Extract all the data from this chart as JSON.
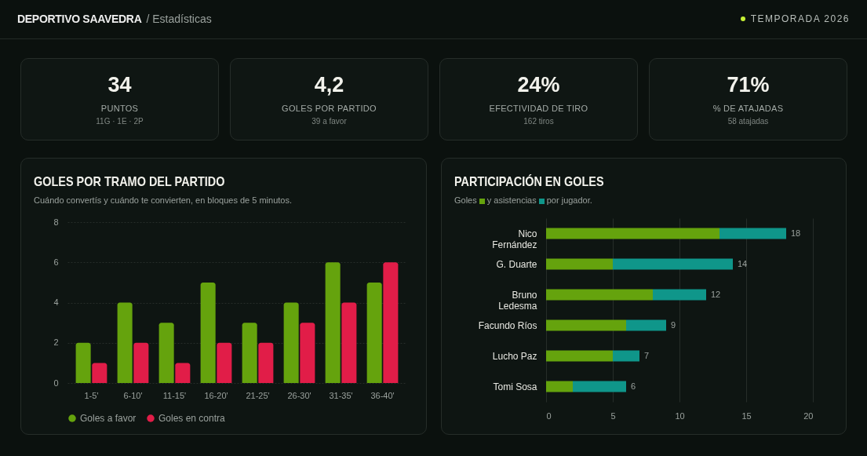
{
  "chart_data": [
    {
      "type": "other",
      "title": "DEPORTIVO SAAVEDRA",
      "subtitle": "/ Estadísticas",
      "annotations": [
        "TEMPORADA 2026",
        "34",
        "PUNTOS",
        "11G · 1E · 2P",
        "4,2",
        "GOLES POR PARTIDO",
        "39 a favor",
        "24%",
        "EFECTIVIDAD DE TIRO",
        "162 tiros",
        "71%",
        "% DE ATAJADAS",
        "58 atajadas"
      ]
    },
    {
      "type": "bar",
      "title": "GOLES POR TRAMO DEL PARTIDO",
      "subtitle": "Cuándo convertís y cuándo te convierten, en bloques de 5 minutos.",
      "categories": [
        "1-5'",
        "6-10'",
        "11-15'",
        "16-20'",
        "21-25'",
        "26-30'",
        "31-35'",
        "36-40'"
      ],
      "series": [
        {
          "name": "Goles a favor",
          "color": "#65a30d",
          "values": [
            2,
            4,
            3,
            5,
            3,
            4,
            6,
            5
          ]
        },
        {
          "name": "Goles en contra",
          "color": "#e11d48",
          "values": [
            1,
            2,
            1,
            2,
            2,
            3,
            4,
            6
          ]
        }
      ],
      "ylim": [
        0,
        8
      ],
      "yticks": [
        0,
        2,
        4,
        6,
        8
      ],
      "grid": "y",
      "legend": "bottom"
    },
    {
      "type": "bar",
      "orientation": "horizontal",
      "stacked": true,
      "title": "PARTICIPACIÓN EN GOLES",
      "subtitle": "por jugador.",
      "categories": [
        "Nico Fernández",
        "G. Duarte",
        "Bruno Ledesma",
        "Facundo Ríos",
        "Lucho Paz",
        "Tomi Sosa"
      ],
      "series": [
        {
          "name": "Goles",
          "color": "#65a30d",
          "values": [
            13,
            5,
            8,
            6,
            5,
            2
          ]
        },
        {
          "name": "y asistencias",
          "color": "#0f968a",
          "values": [
            5,
            9,
            4,
            3,
            2,
            4
          ]
        }
      ],
      "totals": [
        "18",
        "14",
        "12",
        "9",
        "7",
        "6"
      ],
      "xlim": [
        0,
        20
      ],
      "xticks": [
        0,
        5,
        10,
        15,
        20
      ],
      "grid": "x",
      "legend": "top left"
    }
  ]
}
